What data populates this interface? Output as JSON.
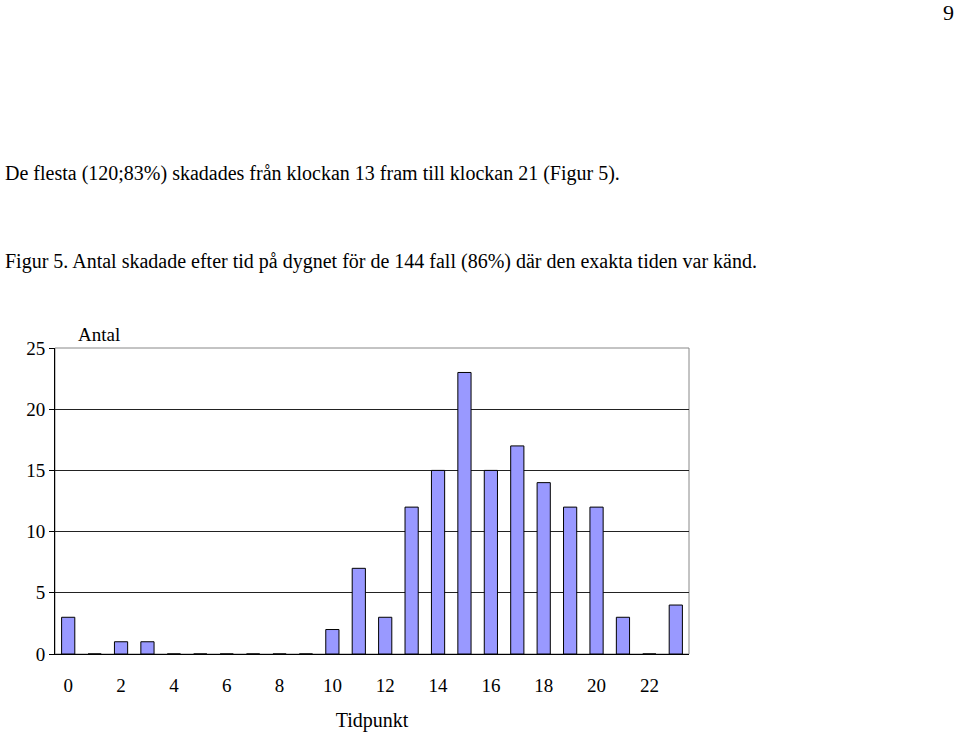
{
  "page_number": "9",
  "text": "De flesta (120;83%) skadades från klockan 13 fram till klockan 21 (Figur 5).",
  "caption": "Figur 5. Antal skadade efter tid på dygnet för de 144 fall (86%) där den exakta tiden var känd.",
  "chart_data": {
    "type": "bar",
    "ylabel": "Antal",
    "xlabel": "Tidpunkt",
    "x": [
      0,
      1,
      2,
      3,
      4,
      5,
      6,
      7,
      8,
      9,
      10,
      11,
      12,
      13,
      14,
      15,
      16,
      17,
      18,
      19,
      20,
      21,
      22,
      23
    ],
    "values": [
      3,
      0,
      1,
      1,
      0,
      0,
      0,
      0,
      0,
      0,
      2,
      7,
      3,
      12,
      15,
      23,
      15,
      17,
      14,
      12,
      12,
      3,
      0,
      4
    ],
    "color": "#9999ff",
    "xlim": [
      -0.5,
      23.5
    ],
    "xticks": [
      0,
      2,
      4,
      6,
      8,
      10,
      12,
      14,
      16,
      18,
      20,
      22
    ],
    "ylim": [
      0,
      25
    ],
    "yticks": [
      0,
      5,
      10,
      15,
      20,
      25
    ],
    "grid": true
  }
}
